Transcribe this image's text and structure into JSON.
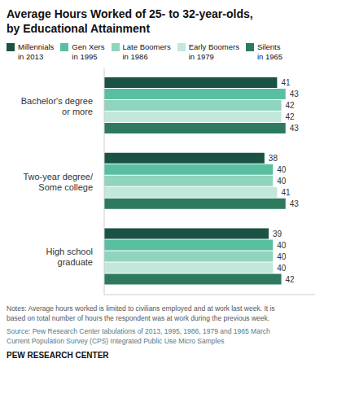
{
  "chart_data": {
    "type": "bar",
    "orientation": "horizontal",
    "title": "Average Hours Worked of 25- to 32-year-olds,\nby Educational Attainment",
    "categories": [
      "Bachelor's degree\nor more",
      "Two-year degree/\nSome college",
      "High school\ngraduate"
    ],
    "series": [
      {
        "name": "Millennials\nin 2013",
        "color": "#1a5246",
        "values": [
          41,
          38,
          39
        ]
      },
      {
        "name": "Gen Xers\nin 1995",
        "color": "#5abfa0",
        "values": [
          43,
          40,
          40
        ]
      },
      {
        "name": "Late Boomers\nin 1986",
        "color": "#8fd4be",
        "values": [
          42,
          40,
          40
        ]
      },
      {
        "name": "Early Boomers\nin 1979",
        "color": "#c2e8dc",
        "values": [
          42,
          41,
          40
        ]
      },
      {
        "name": "Silents\nin 1965",
        "color": "#2d7a5f",
        "values": [
          43,
          43,
          42
        ]
      }
    ],
    "xlim": [
      0,
      50
    ],
    "data_labels": true,
    "tick_labels": "y",
    "grid": false,
    "annotations": [
      "Notes: Average hours worked is limited to civilians employed and at work last week. It is\nbased on total number of hours the respondent was at work during the previous week.",
      "Source: Pew Research Center tabulations of 2013, 1995, 1986, 1979 and 1965 March\nCurrent Population Survey (CPS) Integrated Public Use Micro Samples",
      "PEW RESEARCH CENTER"
    ]
  }
}
